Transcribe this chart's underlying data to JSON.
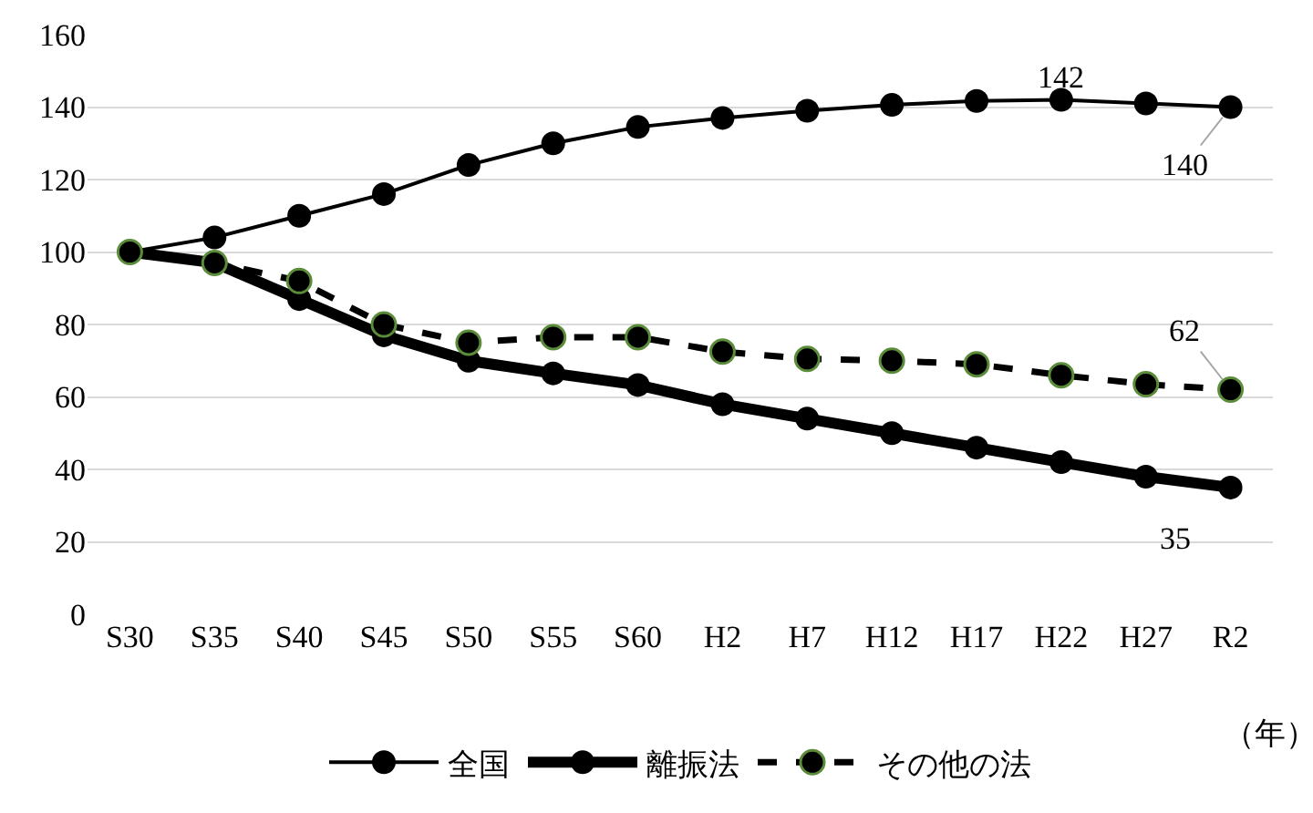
{
  "chart_data": {
    "type": "line",
    "xlabel": "（年）",
    "categories": [
      "S30",
      "S35",
      "S40",
      "S45",
      "S50",
      "S55",
      "S60",
      "H2",
      "H7",
      "H12",
      "H17",
      "H22",
      "H27",
      "R2"
    ],
    "series": [
      {
        "name": "全国",
        "color": "#000000",
        "line_style": "solid",
        "values": [
          100,
          104,
          110,
          116,
          124,
          130,
          134.5,
          137,
          139,
          140.6,
          141.7,
          142,
          141,
          140
        ]
      },
      {
        "name": "離振法",
        "color": "#000000",
        "line_style": "solid",
        "values": [
          100,
          97,
          87,
          77,
          70,
          66.5,
          63.3,
          58,
          54,
          50,
          46,
          42,
          38,
          35
        ]
      },
      {
        "name": "その他の法",
        "color": "#000000",
        "line_style": "dashed",
        "values": [
          100,
          97,
          92,
          80,
          75,
          76.5,
          76.5,
          72.5,
          70.5,
          70,
          69,
          66,
          63.5,
          62
        ]
      }
    ],
    "ylim": [
      0,
      160
    ],
    "yticks": [
      0,
      20,
      40,
      60,
      80,
      100,
      120,
      140,
      160
    ],
    "grid": "y",
    "legend": "bottom",
    "marker": "circle",
    "annotations": [
      {
        "text": "142",
        "x": "H22",
        "y": 142
      },
      {
        "text": "140",
        "x": "R2",
        "y": 140
      },
      {
        "text": "62",
        "x": "R2",
        "y": 62
      },
      {
        "text": "35",
        "x": "R2",
        "y": 35
      }
    ]
  }
}
